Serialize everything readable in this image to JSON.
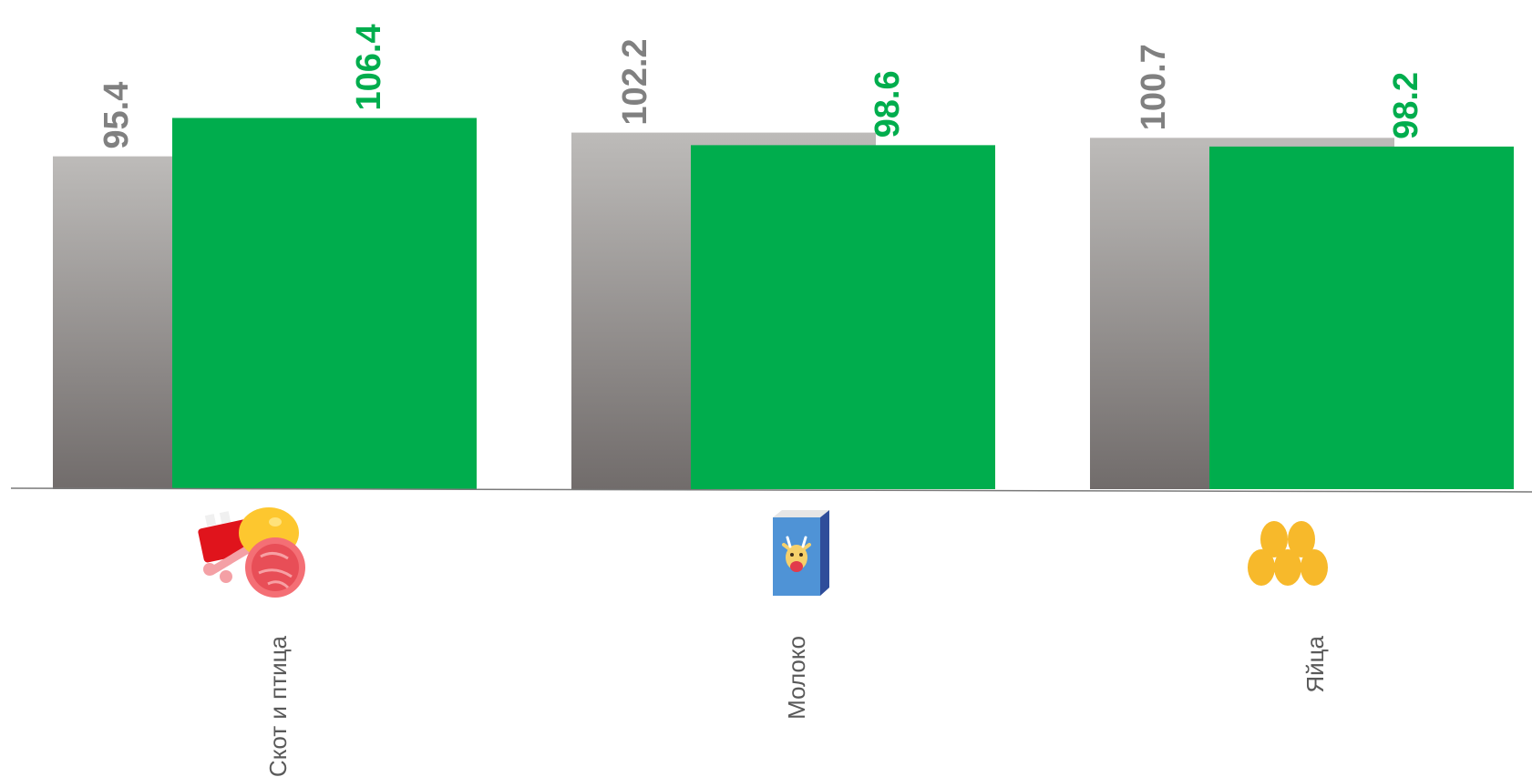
{
  "chart_data": {
    "type": "bar",
    "categories": [
      "Скот и птица",
      "Молоко",
      "Яйца"
    ],
    "category_icons": [
      "meat-poultry-icon",
      "milk-carton-icon",
      "eggs-icon"
    ],
    "series": [
      {
        "color": "#a09d9b",
        "values": [
          95.4,
          102.2,
          100.7
        ]
      },
      {
        "color": "#00ad4d",
        "values": [
          106.4,
          98.6,
          98.2
        ]
      }
    ],
    "ylim": [
      0,
      120
    ],
    "grid": false,
    "legend": "none"
  }
}
